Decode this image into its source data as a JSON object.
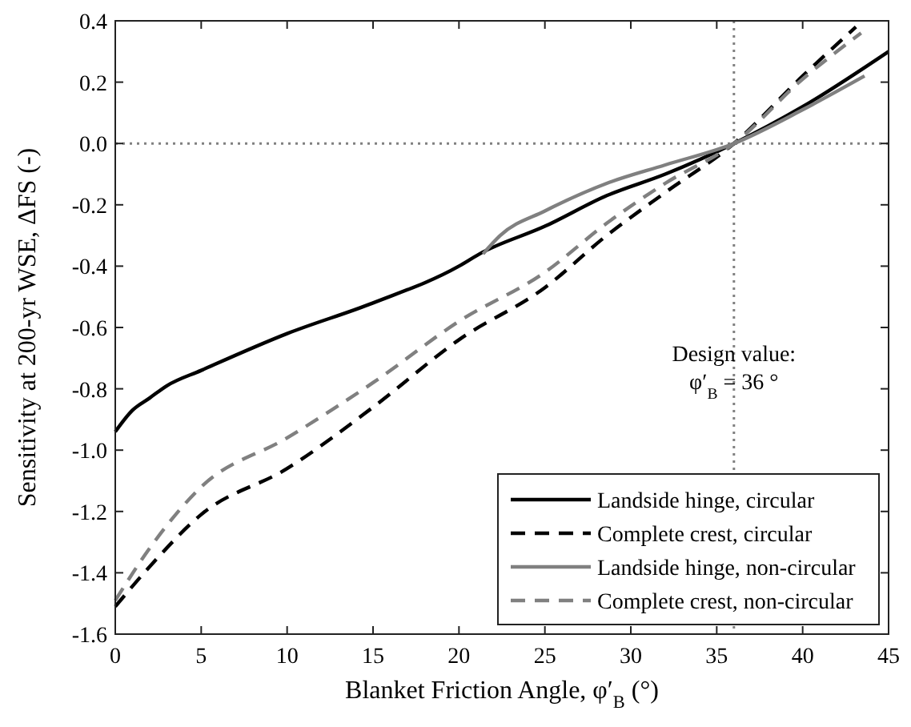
{
  "chart_data": {
    "type": "line",
    "xlabel": "Blanket Friction Angle, φ′$_{B}$ (°)",
    "ylabel": "Sensitivity at 200-yr WSE, ΔFS (-)",
    "xlim": [
      0,
      45
    ],
    "xticks": [
      0,
      5,
      10,
      15,
      20,
      25,
      30,
      35,
      40,
      45
    ],
    "ylim": [
      -1.6,
      0.4
    ],
    "yticks": [
      {
        "value": -1.6,
        "label": "-1.6"
      },
      {
        "value": -1.4,
        "label": "-1.4"
      },
      {
        "value": -1.2,
        "label": "-1.2"
      },
      {
        "value": -1.0,
        "label": "-1.0"
      },
      {
        "value": -0.8,
        "label": "-0.8"
      },
      {
        "value": -0.6,
        "label": "-0.6"
      },
      {
        "value": -0.4,
        "label": "-0.4"
      },
      {
        "value": -0.2,
        "label": "-0.2"
      },
      {
        "value": 0,
        "label": "0.0"
      },
      {
        "value": 0.2,
        "label": "0.2"
      },
      {
        "value": 0.4,
        "label": "0.4"
      }
    ],
    "grid": false,
    "legend": "bottom right",
    "marker": "none",
    "series": [
      {
        "name": "Landside hinge, circular",
        "color": "#000000",
        "line_style": "solid",
        "x": [
          0,
          1,
          2,
          3,
          5,
          10,
          15,
          20,
          21.2,
          25,
          28.6,
          32,
          36,
          40,
          45
        ],
        "values": [
          -0.94,
          -0.87,
          -0.83,
          -0.79,
          -0.74,
          -0.62,
          -0.52,
          -0.4,
          -0.36,
          -0.27,
          -0.17,
          -0.1,
          0,
          0.12,
          0.3
        ]
      },
      {
        "name": "Complete crest, circular",
        "color": "#000000",
        "line_style": "dashed",
        "x": [
          0,
          2,
          5,
          10,
          15,
          20,
          25,
          28.6,
          32,
          36,
          40,
          43.1
        ],
        "values": [
          -1.51,
          -1.38,
          -1.21,
          -1.06,
          -0.86,
          -0.64,
          -0.47,
          -0.3,
          -0.16,
          0,
          0.22,
          0.38
        ]
      },
      {
        "name": "Landside hinge, non-circular",
        "color": "#808080",
        "line_style": "solid",
        "x": [
          21.4,
          22.4,
          25,
          28.6,
          32,
          36,
          40,
          43.6
        ],
        "values": [
          -0.36,
          -0.3,
          -0.22,
          -0.13,
          -0.07,
          0,
          0.11,
          0.22
        ]
      },
      {
        "name": "Complete crest, non-circular",
        "color": "#808080",
        "line_style": "dashed",
        "x": [
          0,
          2,
          5,
          10,
          15,
          20,
          25,
          28.6,
          32,
          36,
          40,
          43.4
        ],
        "values": [
          -1.49,
          -1.32,
          -1.12,
          -0.96,
          -0.78,
          -0.58,
          -0.42,
          -0.26,
          -0.13,
          0,
          0.21,
          0.36
        ]
      }
    ],
    "ref_lines": [
      {
        "axis": "x",
        "value": 36,
        "line_style": "dotted",
        "color": "#808080"
      },
      {
        "axis": "y",
        "value": 0,
        "line_style": "dotted",
        "color": "#808080"
      }
    ],
    "annotations": [
      {
        "text": "Design value:",
        "x": 36,
        "y": -0.71
      },
      {
        "text": "φ′$_{B}$ = 36 °",
        "x": 36,
        "y": -0.8
      }
    ]
  }
}
